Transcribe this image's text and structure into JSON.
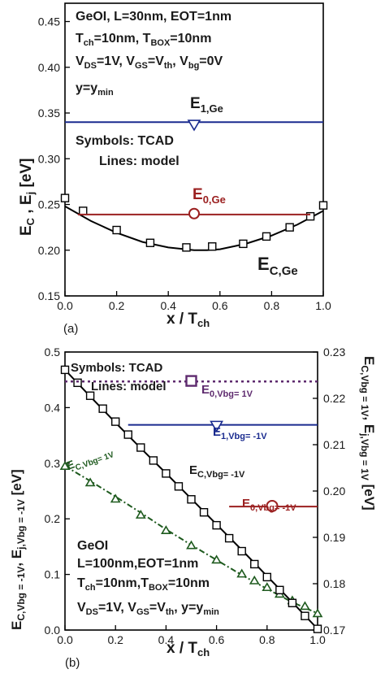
{
  "figure": {
    "panel_a_label": "(a)",
    "panel_b_label": "(b)"
  },
  "chart_data": [
    {
      "type": "line",
      "panel": "(a)",
      "xlabel": "x / T_ch",
      "ylabel": "E_C , E_j [eV]",
      "xlim": [
        0.0,
        1.0
      ],
      "ylim": [
        0.15,
        0.47
      ],
      "xticks": [
        "0.0",
        "0.2",
        "0.4",
        "0.6",
        "0.8",
        "1.0"
      ],
      "yticks": [
        "0.15",
        "0.20",
        "0.25",
        "0.30",
        "0.35",
        "0.40",
        "0.45"
      ],
      "grid": false,
      "legend_position": "none",
      "colors": {
        "ec": "#000000",
        "e0": "#9b2020",
        "e1": "#1a2b8f"
      },
      "annotations": [
        "GeOI, L=30nm, EOT=1nm",
        "T_ch=10nm, T_BOX=10nm",
        "V_DS=1V, V_GS=V_th, V_bg=0V",
        "y=y_min",
        "Symbols: TCAD",
        "Lines: model"
      ],
      "series": [
        {
          "name": "E_C,Ge",
          "style": "black solid line",
          "x": [
            0.0,
            0.1,
            0.2,
            0.3,
            0.4,
            0.5,
            0.55,
            0.6,
            0.7,
            0.8,
            0.9,
            1.0
          ],
          "y": [
            0.248,
            0.232,
            0.219,
            0.209,
            0.203,
            0.2,
            0.2,
            0.201,
            0.207,
            0.216,
            0.228,
            0.243
          ]
        },
        {
          "name": "TCAD squares",
          "style": "open squares",
          "x": [
            0.0,
            0.07,
            0.2,
            0.33,
            0.47,
            0.57,
            0.69,
            0.78,
            0.87,
            0.95,
            1.0
          ],
          "y": [
            0.257,
            0.243,
            0.222,
            0.208,
            0.203,
            0.204,
            0.207,
            0.215,
            0.225,
            0.237,
            0.249
          ]
        },
        {
          "name": "E_0,Ge",
          "style": "dark red line with open circle",
          "x": [
            0.05,
            0.95
          ],
          "y": [
            0.239,
            0.239
          ],
          "marker": {
            "x": 0.5,
            "y": 0.24
          }
        },
        {
          "name": "E_1,Ge",
          "style": "blue line with open triangle",
          "x": [
            0.0,
            1.0
          ],
          "y": [
            0.34,
            0.34
          ],
          "marker": {
            "x": 0.5,
            "y": 0.337
          }
        }
      ]
    },
    {
      "type": "line",
      "panel": "(b)",
      "xlabel": "x / T_ch",
      "ylabel": "E_C,Vbg = -1V, E_j,Vbg = -1V [eV]",
      "y2label": "E_C,Vbg = 1V, E_j,Vbg = 1V [eV]",
      "xlim": [
        0.0,
        1.0
      ],
      "ylim": [
        0.0,
        0.5
      ],
      "y2lim": [
        0.17,
        0.23
      ],
      "xticks": [
        "0.0",
        "0.2",
        "0.4",
        "0.6",
        "0.8",
        "1.0"
      ],
      "yticks": [
        "0.0",
        "0.1",
        "0.2",
        "0.3",
        "0.4",
        "0.5"
      ],
      "y2ticks": [
        "0.17",
        "0.18",
        "0.19",
        "0.20",
        "0.21",
        "0.22",
        "0.23"
      ],
      "grid": false,
      "legend_position": "none",
      "colors": {
        "ec_m1": "#000000",
        "ec_p1": "#1e5a1e",
        "e0_p1": "#5e2a6e",
        "e1_m1": "#1a2b8f",
        "e0_m1": "#9b2020"
      },
      "annotations": [
        "Symbols: TCAD",
        "Lines: model",
        "GeOI",
        "L=100nm,EOT=1nm",
        "T_ch=10nm,T_BOX=10nm",
        "V_DS=1V, V_GS=V_th, y=y_min"
      ],
      "series": [
        {
          "name": "E_C,Vbg= -1V",
          "axis": "left",
          "style": "black solid line with open squares",
          "x": [
            0.0,
            0.1,
            0.2,
            0.3,
            0.4,
            0.5,
            0.6,
            0.7,
            0.8,
            0.9,
            0.95,
            1.0
          ],
          "y": [
            0.468,
            0.42,
            0.373,
            0.327,
            0.282,
            0.236,
            0.19,
            0.144,
            0.097,
            0.05,
            0.026,
            0.002
          ]
        },
        {
          "name": "E_C,Vbg= 1V",
          "axis": "left",
          "style": "green dash-dot line with open triangles",
          "x": [
            0.0,
            0.1,
            0.2,
            0.3,
            0.4,
            0.5,
            0.6,
            0.7,
            0.8,
            0.9,
            1.0
          ],
          "y": [
            0.295,
            0.268,
            0.24,
            0.211,
            0.181,
            0.153,
            0.126,
            0.099,
            0.074,
            0.05,
            0.03
          ]
        },
        {
          "name": "E_0,Vbg= 1V",
          "axis": "left",
          "style": "purple dotted line with square marker",
          "x": [
            0.0,
            1.0
          ],
          "y": [
            0.447,
            0.447
          ],
          "marker": {
            "x": 0.5,
            "y": 0.448
          }
        },
        {
          "name": "E_1,Vbg= -1V",
          "axis": "left",
          "style": "blue solid line with open triangle",
          "x": [
            0.25,
            1.0
          ],
          "y": [
            0.369,
            0.369
          ],
          "marker": {
            "x": 0.6,
            "y": 0.367
          }
        },
        {
          "name": "E_0,Vbg= -1V",
          "axis": "left",
          "style": "dark red solid line with open circle",
          "x": [
            0.65,
            1.0
          ],
          "y": [
            0.222,
            0.222
          ],
          "marker": {
            "x": 0.82,
            "y": 0.223
          }
        }
      ]
    }
  ]
}
